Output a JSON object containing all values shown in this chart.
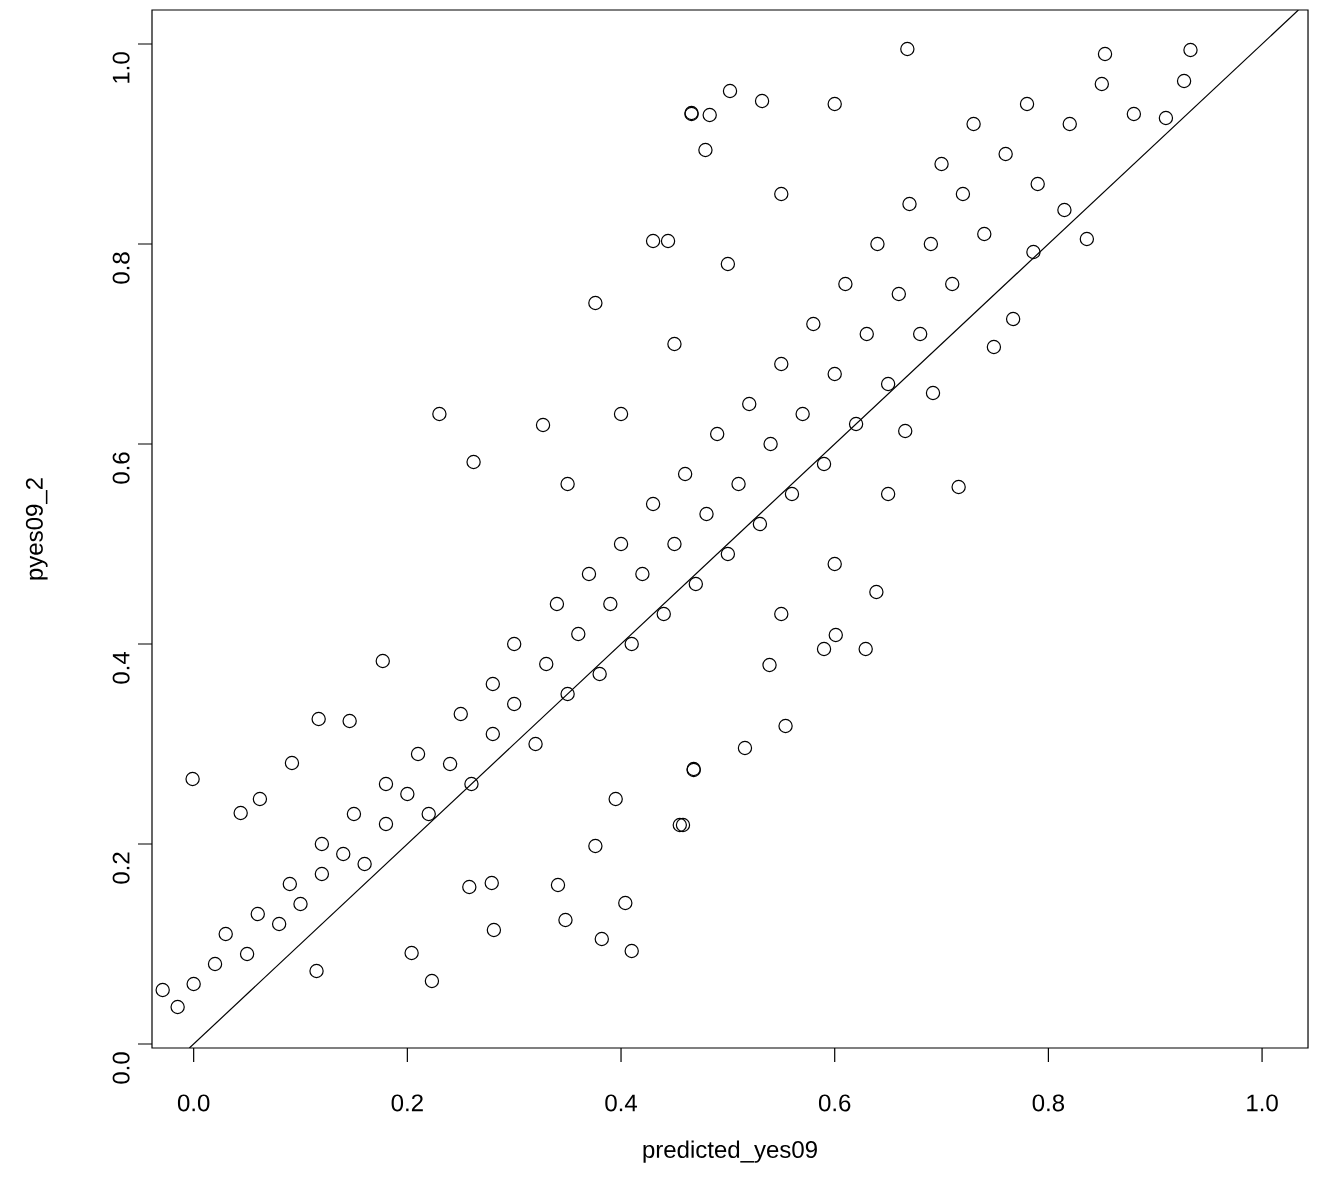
{
  "chart_data": {
    "type": "scatter",
    "xlabel": "predicted_yes09",
    "ylabel": "pyes09_2",
    "xlim": [
      -0.039,
      1.043
    ],
    "ylim": [
      -0.004,
      1.034
    ],
    "xticks": [
      {
        "value": 0,
        "label": "0.0"
      },
      0.2,
      0.4,
      0.6,
      0.8,
      {
        "value": 1,
        "label": "1.0"
      }
    ],
    "yticks": [
      {
        "value": 0,
        "label": "0.0"
      },
      0.2,
      0.4,
      0.6,
      0.8,
      {
        "value": 1,
        "label": "1.0"
      }
    ],
    "grid": false,
    "series": [
      {
        "marker": "circle",
        "color": "#000000",
        "x": [
          -0.001,
          -0.029,
          -0.015,
          0.223,
          0.41,
          0.382,
          0.348,
          0.281,
          0.404,
          0.455,
          0.23,
          0.262,
          0.376,
          0.466,
          0.483,
          0.479,
          0.43,
          0.444,
          0.117,
          0.146,
          0.092,
          0.177,
          0.204,
          0.115,
          0.062,
          0.044,
          0.327,
          0.279,
          0.341,
          0.258,
          0.376,
          0.395,
          0.468,
          0.933,
          0.927,
          0.91,
          0.836,
          0.767,
          0.749,
          0.716,
          0.639,
          0.629,
          0.59,
          0.516,
          0.468,
          0.458,
          0.554,
          0.668,
          0.502,
          0.532,
          0.466,
          0.853,
          0.815,
          0.786,
          0.692,
          0.666,
          0.601,
          0.539,
          0.0,
          0.02,
          0.03,
          0.05,
          0.06,
          0.08,
          0.09,
          0.1,
          0.12,
          0.12,
          0.14,
          0.15,
          0.16,
          0.18,
          0.18,
          0.2,
          0.21,
          0.22,
          0.24,
          0.25,
          0.26,
          0.28,
          0.28,
          0.3,
          0.3,
          0.32,
          0.33,
          0.34,
          0.35,
          0.36,
          0.37,
          0.38,
          0.39,
          0.4,
          0.41,
          0.42,
          0.43,
          0.44,
          0.45,
          0.46,
          0.47,
          0.48,
          0.49,
          0.5,
          0.51,
          0.52,
          0.53,
          0.54,
          0.55,
          0.56,
          0.57,
          0.58,
          0.59,
          0.6,
          0.61,
          0.62,
          0.63,
          0.64,
          0.65,
          0.66,
          0.67,
          0.68,
          0.69,
          0.7,
          0.71,
          0.72,
          0.73,
          0.74,
          0.76,
          0.78,
          0.79,
          0.82,
          0.85,
          0.88,
          0.6,
          0.55,
          0.5,
          0.45,
          0.4,
          0.35,
          0.65,
          0.6,
          0.55
        ],
        "values": [
          0.265,
          0.054,
          0.037,
          0.063,
          0.093,
          0.105,
          0.124,
          0.114,
          0.141,
          0.219,
          0.63,
          0.582,
          0.741,
          0.931,
          0.929,
          0.894,
          0.803,
          0.803,
          0.325,
          0.323,
          0.281,
          0.383,
          0.091,
          0.073,
          0.245,
          0.231,
          0.619,
          0.161,
          0.159,
          0.157,
          0.198,
          0.245,
          0.275,
          0.994,
          0.963,
          0.926,
          0.805,
          0.725,
          0.697,
          0.557,
          0.452,
          0.395,
          0.395,
          0.296,
          0.274,
          0.219,
          0.318,
          0.995,
          0.953,
          0.943,
          0.93,
          0.99,
          0.834,
          0.792,
          0.651,
          0.613,
          0.409,
          0.379,
          0.06,
          0.08,
          0.11,
          0.09,
          0.13,
          0.12,
          0.16,
          0.14,
          0.17,
          0.2,
          0.19,
          0.23,
          0.18,
          0.22,
          0.26,
          0.25,
          0.29,
          0.23,
          0.28,
          0.33,
          0.26,
          0.31,
          0.36,
          0.34,
          0.4,
          0.3,
          0.38,
          0.44,
          0.35,
          0.41,
          0.47,
          0.37,
          0.44,
          0.5,
          0.4,
          0.47,
          0.54,
          0.43,
          0.5,
          0.57,
          0.46,
          0.53,
          0.61,
          0.49,
          0.56,
          0.64,
          0.52,
          0.6,
          0.68,
          0.55,
          0.63,
          0.72,
          0.58,
          0.67,
          0.76,
          0.62,
          0.71,
          0.8,
          0.66,
          0.75,
          0.84,
          0.71,
          0.8,
          0.88,
          0.76,
          0.85,
          0.92,
          0.81,
          0.89,
          0.94,
          0.86,
          0.92,
          0.96,
          0.93,
          0.94,
          0.85,
          0.78,
          0.7,
          0.63,
          0.56,
          0.55,
          0.48,
          0.43
        ]
      },
      {
        "type": "line",
        "color": "#000000",
        "line_style": "solid",
        "x": [
          -0.004,
          1.034
        ],
        "values": [
          -0.004,
          1.034
        ]
      }
    ]
  }
}
